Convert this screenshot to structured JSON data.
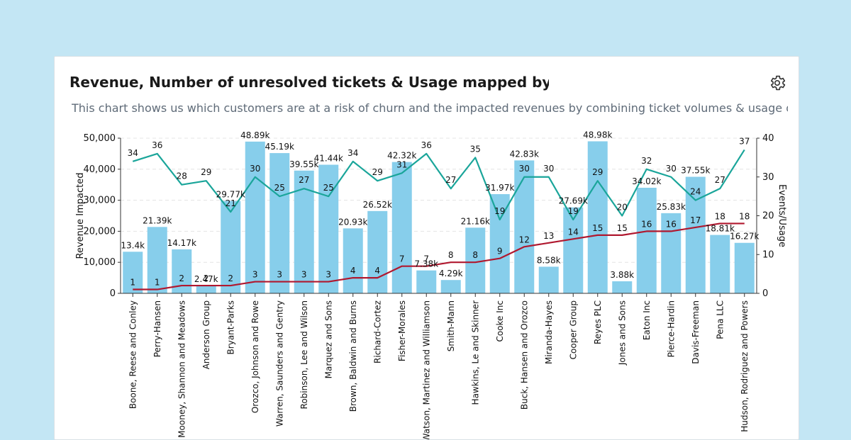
{
  "header": {
    "title": "Revenue, Number of unresolved tickets & Usage mapped by Customer",
    "subtitle": "This chart shows us which customers are at a risk of churn and the impacted revenues by combining ticket volumes & usage data"
  },
  "icons": {
    "settings": "gear-icon"
  },
  "colors": {
    "background": "#c3e6f4",
    "bar": "#87ceeb",
    "usage_line": "#1aa59a",
    "tickets_line": "#b0182f"
  },
  "chart_data": {
    "type": "bar",
    "categories": [
      "Boone, Reese and Conley",
      "Perry-Hansen",
      "Mooney, Shannon and Meadows",
      "Anderson Group",
      "Bryant-Parks",
      "Orozco, Johnson and Rowe",
      "Warren, Saunders and Gentry",
      "Robinson, Lee and Wilson",
      "Marquez and Sons",
      "Brown, Baldwin and Burns",
      "Richard-Cortez",
      "Fisher-Morales",
      "Watson, Martinez and Williamson",
      "Smith-Mann",
      "Hawkins, Le and Skinner",
      "Cooke Inc",
      "Buck, Hansen and Orozco",
      "Miranda-Hayes",
      "Cooper Group",
      "Reyes PLC",
      "Jones and Sons",
      "Eaton Inc",
      "Pierce-Hardin",
      "Davis-Freeman",
      "Pena LLC",
      "Hudson, Rodriguez and Powers"
    ],
    "series": [
      {
        "axis": "left",
        "kind": "bar",
        "values": [
          13400,
          21390,
          14170,
          2470,
          29770,
          48890,
          45190,
          39550,
          41440,
          20930,
          26520,
          42320,
          7380,
          4290,
          21160,
          31970,
          42830,
          8580,
          27690,
          48980,
          3880,
          34020,
          25830,
          37550,
          18810,
          16270
        ],
        "labels": [
          "13.4k",
          "21.39k",
          "14.17k",
          "2.47k",
          "29.77k",
          "48.89k",
          "45.19k",
          "39.55k",
          "41.44k",
          "20.93k",
          "26.52k",
          "42.32k",
          "7.38k",
          "4.29k",
          "21.16k",
          "31.97k",
          "42.83k",
          "8.58k",
          "27.69k",
          "48.98k",
          "3.88k",
          "34.02k",
          "25.83k",
          "37.55k",
          "18.81k",
          "16.27k"
        ]
      },
      {
        "axis": "right",
        "kind": "line",
        "values": [
          34,
          36,
          28,
          29,
          21,
          30,
          25,
          27,
          25,
          34,
          29,
          31,
          36,
          27,
          35,
          19,
          30,
          30,
          19,
          29,
          20,
          32,
          30,
          24,
          27,
          37
        ]
      },
      {
        "axis": "right",
        "kind": "line",
        "values": [
          1,
          1,
          2,
          2,
          2,
          3,
          3,
          3,
          3,
          4,
          4,
          7,
          7,
          8,
          8,
          9,
          12,
          13,
          14,
          15,
          15,
          16,
          16,
          17,
          18,
          18
        ]
      }
    ],
    "ylabel": "Revenue Impacted",
    "y2label": "Events/Usage",
    "ylim": [
      0,
      50000
    ],
    "y2lim": [
      0,
      40
    ],
    "yticks": [
      "0",
      "10,000",
      "20,000",
      "30,000",
      "40,000",
      "50,000"
    ],
    "y2ticks": [
      "0",
      "10",
      "20",
      "30",
      "40"
    ],
    "grid": true
  }
}
